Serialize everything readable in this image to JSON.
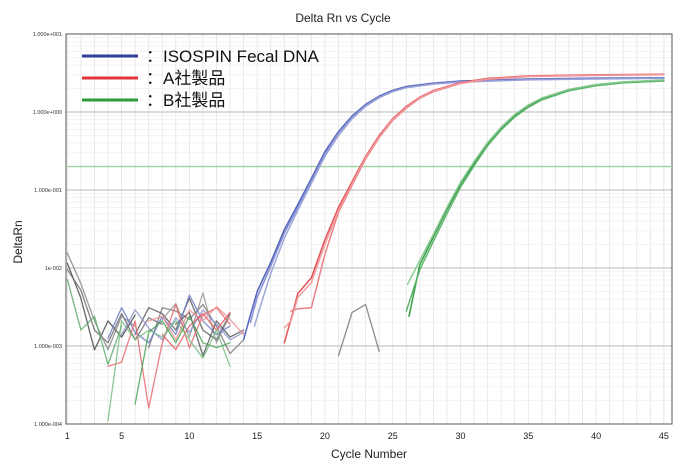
{
  "chart_data": {
    "type": "line",
    "title": "Delta Rn vs Cycle",
    "xlabel": "Cycle Number",
    "ylabel": "DeltaRn",
    "xlim": [
      0.9,
      45.6
    ],
    "ylim_log10": [
      -4,
      1
    ],
    "yscale": "log",
    "x_ticks": [
      1,
      5,
      10,
      15,
      20,
      25,
      30,
      35,
      40,
      45
    ],
    "y_ticks": [
      {
        "value": 10,
        "label": "1.000e+001"
      },
      {
        "value": 1,
        "label": "1.000e+000"
      },
      {
        "value": 0.1,
        "label": "1.000e-001"
      },
      {
        "value": 0.01,
        "label": "1e-002"
      },
      {
        "value": 0.001,
        "label": "1.000e-003"
      },
      {
        "value": 0.0001,
        "label": "1.000e-004"
      }
    ],
    "threshold": 0.2,
    "grid": true,
    "legend_position": "top-left",
    "legend": [
      {
        "label": "：ISOSPIN Fecal DNA",
        "color": "#2f3f9e"
      },
      {
        "label": "：A社製品",
        "color": "#e0343a"
      },
      {
        "label": "：B社製品",
        "color": "#2e9a3e"
      }
    ],
    "series": [
      {
        "group": "isospin",
        "color": "#4b5bb8",
        "points": [
          [
            14,
            0.0012
          ],
          [
            14.5,
            0.0025
          ],
          [
            15,
            0.005
          ],
          [
            16,
            0.0118
          ],
          [
            17,
            0.031
          ],
          [
            18,
            0.065
          ],
          [
            19,
            0.141
          ],
          [
            20,
            0.31
          ],
          [
            21,
            0.56
          ],
          [
            22,
            0.89
          ],
          [
            23,
            1.25
          ],
          [
            24,
            1.6
          ],
          [
            25,
            1.9
          ],
          [
            26,
            2.12
          ],
          [
            28,
            2.35
          ],
          [
            30,
            2.5
          ],
          [
            35,
            2.65
          ],
          [
            40,
            2.72
          ],
          [
            45,
            2.75
          ]
        ]
      },
      {
        "group": "isospin",
        "color": "#7f8ad0",
        "points": [
          [
            14.5,
            0.002
          ],
          [
            15,
            0.0042
          ],
          [
            16,
            0.0105
          ],
          [
            17,
            0.028
          ],
          [
            18,
            0.06
          ],
          [
            19,
            0.132
          ],
          [
            20,
            0.29
          ],
          [
            21,
            0.54
          ],
          [
            22,
            0.86
          ],
          [
            23,
            1.22
          ],
          [
            24,
            1.56
          ],
          [
            25,
            1.85
          ],
          [
            26,
            2.08
          ],
          [
            28,
            2.3
          ],
          [
            30,
            2.45
          ],
          [
            35,
            2.6
          ],
          [
            40,
            2.68
          ],
          [
            45,
            2.72
          ]
        ]
      },
      {
        "group": "isospin",
        "color": "#9aa2d8",
        "points": [
          [
            14.8,
            0.0018
          ],
          [
            15.3,
            0.0035
          ],
          [
            16,
            0.0085
          ],
          [
            17,
            0.024
          ],
          [
            18,
            0.055
          ],
          [
            19,
            0.122
          ],
          [
            20,
            0.27
          ],
          [
            21,
            0.5
          ],
          [
            22,
            0.82
          ],
          [
            23,
            1.18
          ],
          [
            24,
            1.52
          ],
          [
            25,
            1.82
          ],
          [
            26,
            2.05
          ],
          [
            28,
            2.28
          ],
          [
            30,
            2.42
          ],
          [
            35,
            2.58
          ],
          [
            40,
            2.65
          ],
          [
            45,
            2.7
          ]
        ]
      },
      {
        "group": "A",
        "color": "#e04a4f",
        "points": [
          [
            17,
            0.0011
          ],
          [
            17.5,
            0.0022
          ],
          [
            18,
            0.0047
          ],
          [
            19,
            0.0075
          ],
          [
            20,
            0.023
          ],
          [
            21,
            0.06
          ],
          [
            22,
            0.128
          ],
          [
            23,
            0.27
          ],
          [
            24,
            0.5
          ],
          [
            25,
            0.82
          ],
          [
            26,
            1.18
          ],
          [
            27,
            1.55
          ],
          [
            28,
            1.88
          ],
          [
            30,
            2.38
          ],
          [
            32,
            2.7
          ],
          [
            35,
            2.9
          ],
          [
            40,
            3.0
          ],
          [
            45,
            3.05
          ]
        ]
      },
      {
        "group": "A",
        "color": "#ea7a7e",
        "points": [
          [
            17.5,
            0.0028
          ],
          [
            18,
            0.003
          ],
          [
            19,
            0.0031
          ],
          [
            20,
            0.015
          ],
          [
            21,
            0.052
          ],
          [
            22,
            0.115
          ],
          [
            23,
            0.25
          ],
          [
            24,
            0.47
          ],
          [
            25,
            0.78
          ],
          [
            26,
            1.12
          ],
          [
            27,
            1.5
          ],
          [
            28,
            1.82
          ],
          [
            30,
            2.32
          ],
          [
            32,
            2.62
          ],
          [
            35,
            2.85
          ],
          [
            40,
            2.95
          ],
          [
            45,
            3.0
          ]
        ]
      },
      {
        "group": "A",
        "color": "#f09a9d",
        "points": [
          [
            17,
            0.0017
          ],
          [
            17.5,
            0.0021
          ],
          [
            18,
            0.0042
          ],
          [
            19,
            0.0065
          ],
          [
            20,
            0.02
          ],
          [
            21,
            0.055
          ],
          [
            22,
            0.12
          ],
          [
            23,
            0.26
          ],
          [
            24,
            0.48
          ],
          [
            25,
            0.8
          ],
          [
            26,
            1.15
          ],
          [
            27,
            1.52
          ],
          [
            28,
            1.85
          ],
          [
            30,
            2.35
          ],
          [
            32,
            2.65
          ],
          [
            35,
            2.87
          ],
          [
            40,
            2.97
          ],
          [
            45,
            3.02
          ]
        ]
      },
      {
        "group": "B",
        "color": "#2e9a3e",
        "points": [
          [
            26.2,
            0.0024
          ],
          [
            27,
            0.011
          ],
          [
            28,
            0.025
          ],
          [
            29,
            0.056
          ],
          [
            30,
            0.118
          ],
          [
            31,
            0.22
          ],
          [
            32,
            0.39
          ],
          [
            33,
            0.62
          ],
          [
            34,
            0.9
          ],
          [
            35,
            1.2
          ],
          [
            36,
            1.48
          ],
          [
            38,
            1.92
          ],
          [
            40,
            2.22
          ],
          [
            42,
            2.4
          ],
          [
            45,
            2.55
          ]
        ]
      },
      {
        "group": "B",
        "color": "#58b267",
        "points": [
          [
            26,
            0.0028
          ],
          [
            27,
            0.0095
          ],
          [
            28,
            0.022
          ],
          [
            29,
            0.05
          ],
          [
            30,
            0.108
          ],
          [
            31,
            0.205
          ],
          [
            32,
            0.37
          ],
          [
            33,
            0.59
          ],
          [
            34,
            0.86
          ],
          [
            35,
            1.15
          ],
          [
            36,
            1.43
          ],
          [
            38,
            1.87
          ],
          [
            40,
            2.17
          ],
          [
            42,
            2.36
          ],
          [
            45,
            2.5
          ]
        ]
      },
      {
        "group": "B",
        "color": "#86c890",
        "points": [
          [
            26.1,
            0.0062
          ],
          [
            27,
            0.0125
          ],
          [
            28,
            0.027
          ],
          [
            29,
            0.06
          ],
          [
            30,
            0.125
          ],
          [
            31,
            0.232
          ],
          [
            32,
            0.405
          ],
          [
            33,
            0.64
          ],
          [
            34,
            0.93
          ],
          [
            35,
            1.23
          ],
          [
            36,
            1.51
          ],
          [
            38,
            1.95
          ],
          [
            40,
            2.25
          ],
          [
            42,
            2.43
          ],
          [
            45,
            2.58
          ]
        ]
      },
      {
        "group": "noise",
        "color": "#4a4a4a",
        "points": [
          [
            1,
            0.0115
          ],
          [
            2,
            0.0041
          ],
          [
            3,
            0.00089
          ],
          [
            4,
            0.0021
          ],
          [
            5,
            0.0013
          ],
          [
            6,
            0.0025
          ]
        ]
      },
      {
        "group": "noise",
        "color": "#6a6a6a",
        "points": [
          [
            1,
            0.0095
          ],
          [
            2,
            0.0052
          ],
          [
            3,
            0.0016
          ],
          [
            4,
            0.0011
          ],
          [
            5,
            0.0026
          ],
          [
            6,
            0.0012
          ],
          [
            7,
            0.0023
          ],
          [
            8,
            0.0019
          ]
        ]
      },
      {
        "group": "noise",
        "color": "#888888",
        "points": [
          [
            1,
            0.0155
          ],
          [
            2,
            0.0063
          ],
          [
            3,
            0.0021
          ],
          [
            4,
            0.0009
          ],
          [
            5,
            0.0024
          ],
          [
            6,
            0.0018
          ]
        ]
      },
      {
        "group": "noise",
        "color": "#5a5a5a",
        "points": [
          [
            6,
            0.0014
          ],
          [
            7,
            0.0031
          ],
          [
            8,
            0.0026
          ],
          [
            9,
            0.0016
          ],
          [
            10,
            0.0041
          ],
          [
            11,
            0.0016
          ],
          [
            12,
            0.0012
          ],
          [
            13,
            0.0026
          ]
        ]
      },
      {
        "group": "noise",
        "color": "#7a7a7a",
        "points": [
          [
            7,
            0.00095
          ],
          [
            8,
            0.0031
          ],
          [
            9,
            0.0028
          ],
          [
            10,
            0.0022
          ],
          [
            11,
            0.0034
          ],
          [
            12,
            0.0018
          ],
          [
            13,
            0.0008
          ],
          [
            14,
            0.0012
          ]
        ]
      },
      {
        "group": "noise",
        "color": "#999999",
        "points": [
          [
            8,
            0.0022
          ],
          [
            9,
            0.0035
          ],
          [
            10,
            0.0013
          ],
          [
            11,
            0.0048
          ],
          [
            12,
            0.0011
          ],
          [
            13,
            0.0025
          ]
        ]
      },
      {
        "group": "noise",
        "color": "#555555",
        "points": [
          [
            9,
            0.0019
          ],
          [
            10,
            0.0027
          ],
          [
            11,
            0.00075
          ],
          [
            12,
            0.0021
          ],
          [
            13,
            0.0013
          ],
          [
            14,
            0.0016
          ]
        ]
      },
      {
        "group": "noise",
        "color": "#777777",
        "points": [
          [
            21,
            0.00075
          ],
          [
            22,
            0.0027
          ],
          [
            23,
            0.0034
          ],
          [
            24,
            0.00085
          ]
        ]
      },
      {
        "group": "noise",
        "color": "#6f7bc4",
        "points": [
          [
            4,
            0.00125
          ],
          [
            5,
            0.0031
          ],
          [
            6,
            0.0015
          ],
          [
            7,
            0.0011
          ],
          [
            8,
            0.0024
          ],
          [
            9,
            0.0014
          ],
          [
            10,
            0.0045
          ],
          [
            11,
            0.0021
          ],
          [
            12,
            0.0014
          ],
          [
            13,
            0.0018
          ]
        ]
      },
      {
        "group": "noise",
        "color": "#8a93cf",
        "points": [
          [
            5,
            0.0014
          ],
          [
            6,
            0.0029
          ],
          [
            7,
            0.0017
          ],
          [
            8,
            0.0012
          ],
          [
            9,
            0.0023
          ],
          [
            10,
            0.0015
          ],
          [
            11,
            0.0029
          ],
          [
            12,
            0.0019
          ],
          [
            13,
            0.0012
          ],
          [
            14,
            0.0015
          ]
        ]
      },
      {
        "group": "noise",
        "color": "#e86a6e",
        "points": [
          [
            4,
            0.00055
          ],
          [
            5,
            0.00062
          ],
          [
            6,
            0.0021
          ],
          [
            7,
            0.00016
          ],
          [
            8,
            0.0011
          ],
          [
            9,
            0.0034
          ],
          [
            10,
            0.00095
          ],
          [
            11,
            0.0025
          ],
          [
            12,
            0.0031
          ],
          [
            13,
            0.0019
          ]
        ]
      },
      {
        "group": "noise",
        "color": "#ee9094",
        "points": [
          [
            7,
            0.0021
          ],
          [
            8,
            0.0024
          ],
          [
            9,
            0.0012
          ],
          [
            10,
            0.0029
          ],
          [
            11,
            0.0021
          ],
          [
            12,
            0.0032
          ],
          [
            13,
            0.0022
          ],
          [
            14,
            0.0014
          ]
        ]
      },
      {
        "group": "noise",
        "color": "#e55a5f",
        "points": [
          [
            8,
            0.0014
          ],
          [
            9,
            0.0009
          ],
          [
            10,
            0.0018
          ],
          [
            11,
            0.0026
          ],
          [
            12,
            0.0016
          ],
          [
            13,
            0.0027
          ]
        ]
      },
      {
        "group": "noise",
        "color": "#5dae68",
        "points": [
          [
            1,
            0.0071
          ],
          [
            2,
            0.0016
          ],
          [
            3,
            0.0024
          ],
          [
            4,
            0.00058
          ],
          [
            5,
            0.0018
          ]
        ]
      },
      {
        "group": "noise",
        "color": "#78bd82",
        "points": [
          [
            4,
            0.00011
          ],
          [
            5,
            0.0021
          ],
          [
            6,
            0.0012
          ],
          [
            7,
            0.0016
          ],
          [
            8,
            0.0013
          ],
          [
            9,
            0.0021
          ],
          [
            10,
            0.0012
          ],
          [
            11,
            0.0007
          ],
          [
            12,
            0.0016
          ],
          [
            13,
            0.00055
          ]
        ]
      },
      {
        "group": "noise",
        "color": "#4aa356",
        "points": [
          [
            6,
            0.00018
          ],
          [
            7,
            0.0015
          ],
          [
            8,
            0.0021
          ],
          [
            9,
            0.0011
          ],
          [
            10,
            0.0024
          ],
          [
            11,
            0.0011
          ],
          [
            12,
            0.00095
          ],
          [
            13,
            0.0011
          ]
        ]
      }
    ]
  }
}
